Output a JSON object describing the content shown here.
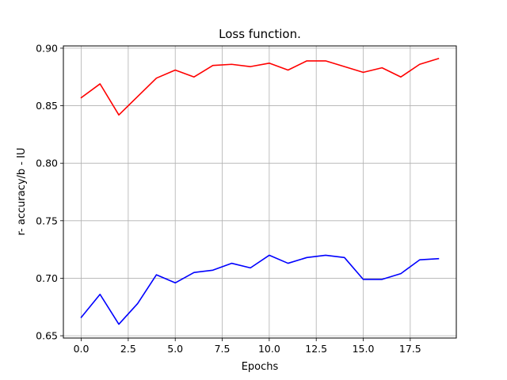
{
  "chart_data": {
    "type": "line",
    "title": "Loss function.",
    "xlabel": "Epochs",
    "ylabel": "r- accuracy/b - IU",
    "x": [
      0,
      1,
      2,
      3,
      4,
      5,
      6,
      7,
      8,
      9,
      10,
      11,
      12,
      13,
      14,
      15,
      16,
      17,
      18,
      19
    ],
    "xlim": [
      -0.95,
      19.95
    ],
    "ylim": [
      0.648,
      0.902
    ],
    "xticks": [
      0.0,
      2.5,
      5.0,
      7.5,
      10.0,
      12.5,
      15.0,
      17.5
    ],
    "xtick_labels": [
      "0.0",
      "2.5",
      "5.0",
      "7.5",
      "10.0",
      "12.5",
      "15.0",
      "17.5"
    ],
    "yticks": [
      0.65,
      0.7,
      0.75,
      0.8,
      0.85,
      0.9
    ],
    "ytick_labels": [
      "0.65",
      "0.70",
      "0.75",
      "0.80",
      "0.85",
      "0.90"
    ],
    "grid": true,
    "series": [
      {
        "color": "#ff0000",
        "values": [
          0.857,
          0.869,
          0.842,
          0.858,
          0.874,
          0.881,
          0.875,
          0.885,
          0.886,
          0.884,
          0.887,
          0.881,
          0.889,
          0.889,
          0.884,
          0.879,
          0.883,
          0.875,
          0.886,
          0.891
        ]
      },
      {
        "color": "#0000ff",
        "values": [
          0.666,
          0.686,
          0.66,
          0.678,
          0.703,
          0.696,
          0.705,
          0.707,
          0.713,
          0.709,
          0.72,
          0.713,
          0.718,
          0.72,
          0.718,
          0.699,
          0.699,
          0.704,
          0.716,
          0.717
        ]
      }
    ]
  }
}
